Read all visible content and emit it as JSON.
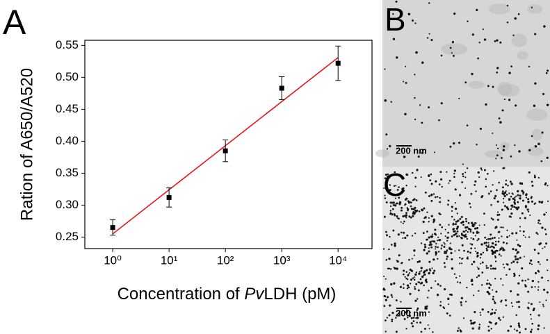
{
  "chart_data": {
    "type": "scatter",
    "panel_label": "A",
    "x_label": [
      "Concentration of ",
      "Pv",
      "LDH (pM)"
    ],
    "y_label": "Ration of A650/A520",
    "x": [
      1,
      10,
      100,
      1000,
      10000
    ],
    "values": [
      0.265,
      0.312,
      0.385,
      0.483,
      0.522
    ],
    "errors": [
      0.012,
      0.015,
      0.017,
      0.018,
      0.027
    ],
    "color": "#000000",
    "fit": {
      "x": [
        1,
        10000
      ],
      "values": [
        0.255,
        0.531
      ],
      "color": "#e8141b"
    },
    "xscale": "log",
    "xlim": [
      0.32,
      40000
    ],
    "xticks": [
      {
        "value": 1,
        "label": "10⁰"
      },
      {
        "value": 10,
        "label": "10¹"
      },
      {
        "value": 100,
        "label": "10²"
      },
      {
        "value": 1000,
        "label": "10³"
      },
      {
        "value": 10000,
        "label": "10⁴"
      }
    ],
    "ylim": [
      0.232,
      0.558
    ],
    "yticks": [
      0.25,
      {
        "value": 0.3,
        "label": "0.30"
      },
      0.35,
      {
        "value": 0.4,
        "label": "0.40"
      },
      0.45,
      {
        "value": 0.5,
        "label": "0.50"
      },
      0.55
    ]
  },
  "panels": [
    {
      "label": "B",
      "scale_bar": "200 nm"
    },
    {
      "label": "C",
      "scale_bar": "200 nm"
    }
  ]
}
